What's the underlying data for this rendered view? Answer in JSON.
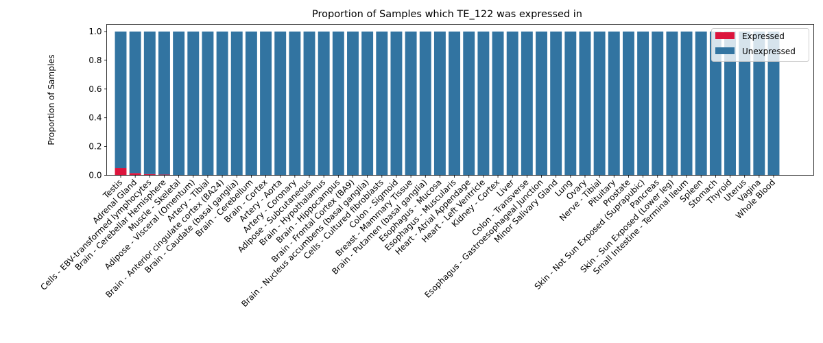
{
  "chart_data": {
    "type": "bar",
    "stacked": true,
    "title": "Proportion of Samples which TE_122 was expressed in",
    "xlabel": "",
    "ylabel": "Proportion of Samples",
    "ylim": [
      0,
      1.05
    ],
    "yticks": [
      "0.0",
      "0.2",
      "0.4",
      "0.6",
      "0.8",
      "1.0"
    ],
    "legend_position": "top-right",
    "grid": false,
    "categories": [
      "Testis",
      "Adrenal Gland",
      "Cells - EBV-transformed lymphocytes",
      "Brain - Cerebellar Hemisphere",
      "Muscle - Skeletal",
      "Adipose - Visceral (Omentum)",
      "Artery - Tibial",
      "Brain - Anterior cingulate cortex (BA24)",
      "Brain - Caudate (basal ganglia)",
      "Brain - Cerebellum",
      "Brain - Cortex",
      "Artery - Aorta",
      "Artery - Coronary",
      "Adipose - Subcutaneous",
      "Brain - Hypothalamus",
      "Brain - Hippocampus",
      "Brain - Frontal Cortex (BA9)",
      "Brain - Nucleus accumbens (basal ganglia)",
      "Cells - Cultured fibroblasts",
      "Colon - Sigmoid",
      "Breast - Mammary Tissue",
      "Brain - Putamen (basal ganglia)",
      "Esophagus - Mucosa",
      "Esophagus - Muscularis",
      "Heart - Atrial Appendage",
      "Heart - Left Ventricle",
      "Kidney - Cortex",
      "Liver",
      "Colon - Transverse",
      "Esophagus - Gastroesophageal Junction",
      "Minor Salivary Gland",
      "Lung",
      "Ovary",
      "Nerve - Tibial",
      "Pituitary",
      "Prostate",
      "Skin - Not Sun Exposed (Suprapubic)",
      "Pancreas",
      "Skin - Sun Exposed (Lower leg)",
      "Small Intestine - Terminal Ileum",
      "Spleen",
      "Stomach",
      "Thyroid",
      "Uterus",
      "Vagina",
      "Whole Blood"
    ],
    "series": [
      {
        "name": "Expressed",
        "color": "#dc143c",
        "values": [
          0.05,
          0.015,
          0.008,
          0.005,
          0,
          0,
          0,
          0,
          0,
          0,
          0,
          0,
          0,
          0,
          0,
          0,
          0,
          0,
          0,
          0,
          0,
          0,
          0,
          0,
          0,
          0,
          0,
          0,
          0,
          0,
          0,
          0,
          0,
          0,
          0,
          0,
          0,
          0,
          0,
          0,
          0,
          0,
          0,
          0,
          0,
          0
        ]
      },
      {
        "name": "Unexpressed",
        "color": "#3274a1",
        "values": [
          0.95,
          0.985,
          0.992,
          0.995,
          1,
          1,
          1,
          1,
          1,
          1,
          1,
          1,
          1,
          1,
          1,
          1,
          1,
          1,
          1,
          1,
          1,
          1,
          1,
          1,
          1,
          1,
          1,
          1,
          1,
          1,
          1,
          1,
          1,
          1,
          1,
          1,
          1,
          1,
          1,
          1,
          1,
          1,
          1,
          1,
          1,
          1
        ]
      }
    ]
  }
}
